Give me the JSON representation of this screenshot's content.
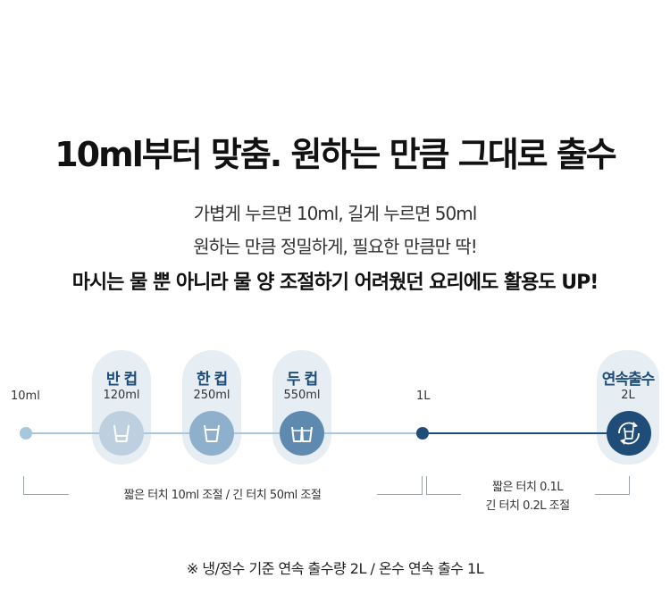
{
  "headline": "10ml부터 맞춤. 원하는 만큼 그대로 출수",
  "subtitle_lines": [
    "가볍게 누르면 10ml, 길게 누르면 50ml",
    "원하는 만큼 정밀하게, 필요한 만큼만 딱!",
    "마시는 물 뿐 아니라 물 양 조절하기 어려웠던 요리에도 활용도 UP!"
  ],
  "timeline": {
    "start_label": "10ml",
    "one_liter_label": "1L",
    "cups": [
      {
        "name": "반 컵",
        "volume": "120ml"
      },
      {
        "name": "한 컵",
        "volume": "250ml"
      },
      {
        "name": "두 컵",
        "volume": "550ml"
      }
    ],
    "continuous": {
      "name": "연속출수",
      "volume": "2L"
    }
  },
  "notes": {
    "left": "짧은 터치 10ml 조절  /  긴 터치 50ml 조절",
    "right_line1": "짧은 터치 0.1L",
    "right_line2": "긴 터치 0.2L 조절"
  },
  "footnote": "※ 냉/정수 기준 연속 출수량 2L / 온수 연속 출수 1L",
  "colors": {
    "line_light": "#a9c7dc",
    "line_dark": "#1f4d78",
    "circle1": "#bed0e0",
    "circle2": "#8fb0cc",
    "circle3": "#5f8ab0",
    "circle_dark": "#1f4d78",
    "pill_bg": "#e6edf3"
  }
}
